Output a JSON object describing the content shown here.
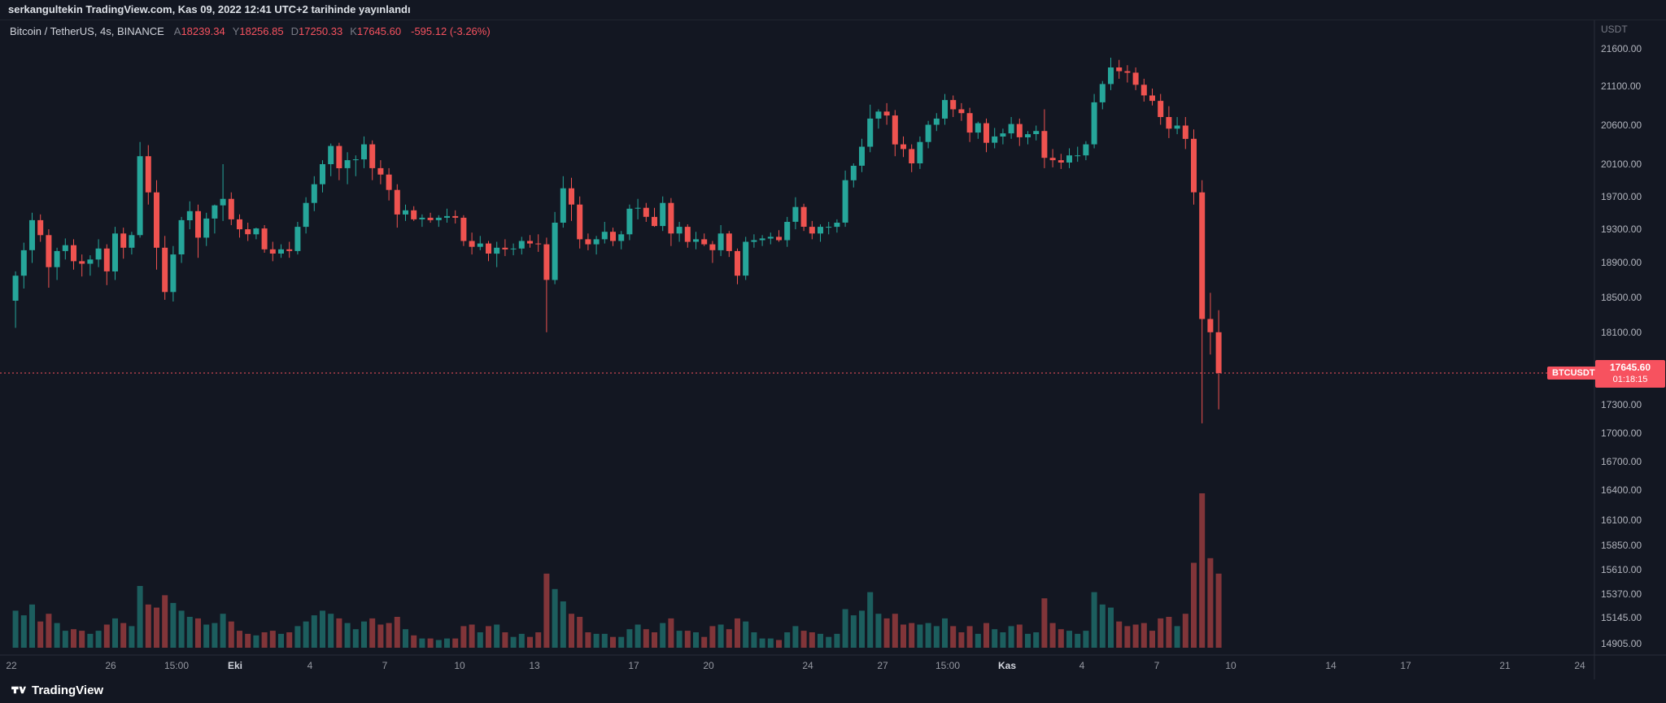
{
  "banner": {
    "text": "serkangultekin TradingView.com, Kas 09, 2022 12:41 UTC+2 tarihinde yayınlandı"
  },
  "legend": {
    "symbol_title": "Bitcoin / TetherUS, 4s, BINANCE",
    "ohlc": [
      {
        "label": "A",
        "value": "18239.34"
      },
      {
        "label": "Y",
        "value": "18256.85"
      },
      {
        "label": "D",
        "value": "17250.33"
      },
      {
        "label": "K",
        "value": "17645.60"
      }
    ],
    "change": "-595.12 (-3.26%)"
  },
  "price_scale": {
    "currency": "USDT",
    "current": {
      "symbol": "BTCUSDT",
      "price": "17645.60",
      "countdown": "01:18:15",
      "value": 17645.6
    },
    "labels": [
      {
        "text": "21600.00",
        "price": 21600
      },
      {
        "text": "21100.00",
        "price": 21100
      },
      {
        "text": "20600.00",
        "price": 20600
      },
      {
        "text": "20100.00",
        "price": 20100
      },
      {
        "text": "19700.00",
        "price": 19700
      },
      {
        "text": "19300.00",
        "price": 19300
      },
      {
        "text": "18900.00",
        "price": 18900
      },
      {
        "text": "18500.00",
        "price": 18500
      },
      {
        "text": "18100.00",
        "price": 18100
      },
      {
        "text": "17300.00",
        "price": 17300
      },
      {
        "text": "17000.00",
        "price": 17000
      },
      {
        "text": "16700.00",
        "price": 16700
      },
      {
        "text": "16400.00",
        "price": 16400
      },
      {
        "text": "16100.00",
        "price": 16100
      },
      {
        "text": "15850.00",
        "price": 15850
      },
      {
        "text": "15610.00",
        "price": 15610
      },
      {
        "text": "15370.00",
        "price": 15370
      },
      {
        "text": "15145.00",
        "price": 15145
      },
      {
        "text": "14905.00",
        "price": 14905
      }
    ]
  },
  "time_scale": {
    "labels": [
      {
        "text": "22",
        "day": 0,
        "major": false
      },
      {
        "text": "26",
        "day": 4,
        "major": false
      },
      {
        "text": "15:00",
        "day": 6.625,
        "major": false
      },
      {
        "text": "Eki",
        "day": 9,
        "major": true
      },
      {
        "text": "4",
        "day": 12,
        "major": false
      },
      {
        "text": "7",
        "day": 15,
        "major": false
      },
      {
        "text": "10",
        "day": 18,
        "major": false
      },
      {
        "text": "13",
        "day": 21,
        "major": false
      },
      {
        "text": "17",
        "day": 25,
        "major": false
      },
      {
        "text": "20",
        "day": 28,
        "major": false
      },
      {
        "text": "24",
        "day": 32,
        "major": false
      },
      {
        "text": "27",
        "day": 35,
        "major": false
      },
      {
        "text": "15:00",
        "day": 37.625,
        "major": false
      },
      {
        "text": "Kas",
        "day": 40,
        "major": true
      },
      {
        "text": "4",
        "day": 43,
        "major": false
      },
      {
        "text": "7",
        "day": 46,
        "major": false
      },
      {
        "text": "10",
        "day": 49,
        "major": false
      },
      {
        "text": "14",
        "day": 53,
        "major": false
      },
      {
        "text": "17",
        "day": 56,
        "major": false
      },
      {
        "text": "21",
        "day": 60,
        "major": false
      },
      {
        "text": "24",
        "day": 63,
        "major": false
      }
    ]
  },
  "footer": {
    "logo_text": "TradingView"
  },
  "colors": {
    "background": "#131722",
    "up": "#26a69a",
    "down": "#ef5350",
    "accent_red": "#f7525f",
    "grid_border": "#2a2e39"
  },
  "chart_data": {
    "type": "candlestick",
    "title": "Bitcoin / TetherUS, 4s, BINANCE",
    "symbol": "BTCUSDT",
    "exchange": "BINANCE",
    "interval": "4s",
    "current_price": 17645.6,
    "change": -595.12,
    "change_pct": -3.26,
    "y_axis": {
      "min": 14905,
      "max": 21600,
      "scale": "log",
      "unit": "USDT"
    },
    "x_axis": {
      "start": "2022-09-22",
      "last_candle": "2022-11-09",
      "visible_end": "2022-11-24"
    },
    "candle_hours": 8,
    "candles_format": "[open, high, low, close, relative_volume_0_100]",
    "candles": [
      [
        18460,
        18800,
        18150,
        18750,
        24
      ],
      [
        18750,
        19140,
        18600,
        19050,
        21
      ],
      [
        19050,
        19500,
        18900,
        19410,
        28
      ],
      [
        19410,
        19480,
        19150,
        19230,
        17
      ],
      [
        19230,
        19300,
        18610,
        18850,
        22
      ],
      [
        18850,
        19080,
        18700,
        19040,
        16
      ],
      [
        19040,
        19190,
        18940,
        19110,
        11
      ],
      [
        19110,
        19180,
        18820,
        18920,
        12
      ],
      [
        18920,
        19000,
        18740,
        18890,
        11
      ],
      [
        18890,
        18990,
        18750,
        18940,
        9
      ],
      [
        18940,
        19180,
        18850,
        19070,
        11
      ],
      [
        19070,
        19120,
        18640,
        18800,
        15
      ],
      [
        18800,
        19330,
        18700,
        19250,
        19
      ],
      [
        19250,
        19320,
        18950,
        19080,
        16
      ],
      [
        19080,
        19270,
        19000,
        19230,
        14
      ],
      [
        19230,
        20380,
        19200,
        20200,
        40
      ],
      [
        20200,
        20340,
        19600,
        19750,
        28
      ],
      [
        19750,
        19900,
        18820,
        19080,
        26
      ],
      [
        19080,
        19220,
        18470,
        18560,
        34
      ],
      [
        18560,
        19100,
        18450,
        19000,
        29
      ],
      [
        19000,
        19450,
        18900,
        19410,
        24
      ],
      [
        19410,
        19640,
        19300,
        19520,
        20
      ],
      [
        19520,
        19600,
        18960,
        19200,
        19
      ],
      [
        19200,
        19500,
        19100,
        19430,
        15
      ],
      [
        19430,
        19600,
        19250,
        19590,
        16
      ],
      [
        19590,
        20100,
        19400,
        19670,
        22
      ],
      [
        19670,
        19750,
        19350,
        19420,
        17
      ],
      [
        19420,
        19480,
        19200,
        19300,
        11
      ],
      [
        19300,
        19380,
        19160,
        19240,
        9
      ],
      [
        19240,
        19320,
        19180,
        19310,
        8
      ],
      [
        19310,
        19350,
        19020,
        19060,
        10
      ],
      [
        19060,
        19150,
        18920,
        19010,
        11
      ],
      [
        19010,
        19120,
        18960,
        19060,
        9
      ],
      [
        19060,
        19150,
        18960,
        19040,
        10
      ],
      [
        19040,
        19390,
        19000,
        19330,
        14
      ],
      [
        19330,
        19690,
        19250,
        19620,
        17
      ],
      [
        19620,
        19950,
        19520,
        19850,
        21
      ],
      [
        19850,
        20150,
        19750,
        20100,
        24
      ],
      [
        20100,
        20360,
        19950,
        20330,
        22
      ],
      [
        20330,
        20370,
        19900,
        20050,
        19
      ],
      [
        20050,
        20250,
        19850,
        20150,
        16
      ],
      [
        20150,
        20210,
        19950,
        20160,
        12
      ],
      [
        20160,
        20450,
        20050,
        20350,
        17
      ],
      [
        20350,
        20400,
        19900,
        20050,
        19
      ],
      [
        20050,
        20150,
        19850,
        19970,
        15
      ],
      [
        19970,
        20050,
        19650,
        19780,
        16
      ],
      [
        19780,
        19850,
        19320,
        19480,
        20
      ],
      [
        19480,
        19600,
        19400,
        19530,
        12
      ],
      [
        19530,
        19580,
        19400,
        19420,
        8
      ],
      [
        19420,
        19480,
        19330,
        19440,
        6
      ],
      [
        19440,
        19500,
        19380,
        19410,
        6
      ],
      [
        19410,
        19470,
        19330,
        19440,
        5
      ],
      [
        19440,
        19550,
        19380,
        19460,
        6
      ],
      [
        19460,
        19530,
        19370,
        19440,
        6
      ],
      [
        19440,
        19470,
        19100,
        19160,
        14
      ],
      [
        19160,
        19260,
        19000,
        19090,
        15
      ],
      [
        19090,
        19220,
        19050,
        19130,
        10
      ],
      [
        19130,
        19160,
        18920,
        19010,
        14
      ],
      [
        19010,
        19150,
        18850,
        19080,
        15
      ],
      [
        19080,
        19180,
        18980,
        19060,
        10
      ],
      [
        19060,
        19130,
        18990,
        19070,
        7
      ],
      [
        19070,
        19210,
        19000,
        19160,
        9
      ],
      [
        19160,
        19230,
        19080,
        19130,
        7
      ],
      [
        19130,
        19240,
        19030,
        19120,
        10
      ],
      [
        19120,
        19200,
        18100,
        18700,
        48
      ],
      [
        18700,
        19510,
        18650,
        19380,
        38
      ],
      [
        19380,
        19950,
        19320,
        19800,
        30
      ],
      [
        19800,
        19930,
        19400,
        19600,
        22
      ],
      [
        19600,
        19700,
        19070,
        19180,
        20
      ],
      [
        19180,
        19250,
        19050,
        19120,
        10
      ],
      [
        19120,
        19220,
        19000,
        19180,
        9
      ],
      [
        19180,
        19390,
        19130,
        19270,
        9
      ],
      [
        19270,
        19320,
        19100,
        19160,
        7
      ],
      [
        19160,
        19280,
        19060,
        19240,
        7
      ],
      [
        19240,
        19600,
        19170,
        19550,
        12
      ],
      [
        19550,
        19670,
        19420,
        19560,
        15
      ],
      [
        19560,
        19620,
        19390,
        19450,
        12
      ],
      [
        19450,
        19560,
        19330,
        19340,
        10
      ],
      [
        19340,
        19700,
        19280,
        19620,
        16
      ],
      [
        19620,
        19680,
        19100,
        19250,
        19
      ],
      [
        19250,
        19390,
        19150,
        19330,
        11
      ],
      [
        19330,
        19360,
        19080,
        19150,
        11
      ],
      [
        19150,
        19270,
        19060,
        19180,
        10
      ],
      [
        19180,
        19250,
        19100,
        19120,
        7
      ],
      [
        19120,
        19160,
        18900,
        19050,
        14
      ],
      [
        19050,
        19350,
        18980,
        19250,
        15
      ],
      [
        19250,
        19280,
        18970,
        19040,
        12
      ],
      [
        19040,
        19070,
        18650,
        18750,
        19
      ],
      [
        18750,
        19210,
        18700,
        19150,
        17
      ],
      [
        19150,
        19240,
        19080,
        19170,
        10
      ],
      [
        19170,
        19230,
        19100,
        19190,
        6
      ],
      [
        19190,
        19260,
        19120,
        19210,
        6
      ],
      [
        19210,
        19290,
        19150,
        19170,
        5
      ],
      [
        19170,
        19450,
        19090,
        19390,
        10
      ],
      [
        19390,
        19690,
        19300,
        19570,
        14
      ],
      [
        19570,
        19610,
        19280,
        19330,
        11
      ],
      [
        19330,
        19400,
        19180,
        19250,
        10
      ],
      [
        19250,
        19360,
        19150,
        19330,
        9
      ],
      [
        19330,
        19390,
        19240,
        19330,
        7
      ],
      [
        19330,
        19420,
        19260,
        19380,
        9
      ],
      [
        19380,
        20020,
        19330,
        19900,
        25
      ],
      [
        19900,
        20110,
        19810,
        20080,
        21
      ],
      [
        20080,
        20420,
        20000,
        20320,
        24
      ],
      [
        20320,
        20860,
        20250,
        20680,
        36
      ],
      [
        20680,
        20800,
        20550,
        20770,
        22
      ],
      [
        20770,
        20880,
        20600,
        20720,
        19
      ],
      [
        20720,
        20790,
        20200,
        20350,
        22
      ],
      [
        20350,
        20450,
        20190,
        20290,
        15
      ],
      [
        20290,
        20350,
        20000,
        20110,
        16
      ],
      [
        20110,
        20450,
        20040,
        20380,
        15
      ],
      [
        20380,
        20650,
        20300,
        20600,
        16
      ],
      [
        20600,
        20750,
        20520,
        20680,
        14
      ],
      [
        20680,
        21000,
        20600,
        20920,
        19
      ],
      [
        20920,
        20980,
        20700,
        20800,
        14
      ],
      [
        20800,
        20880,
        20650,
        20750,
        10
      ],
      [
        20750,
        20820,
        20380,
        20500,
        14
      ],
      [
        20500,
        20640,
        20420,
        20620,
        9
      ],
      [
        20620,
        20680,
        20250,
        20370,
        16
      ],
      [
        20370,
        20560,
        20300,
        20450,
        12
      ],
      [
        20450,
        20550,
        20350,
        20490,
        10
      ],
      [
        20490,
        20700,
        20420,
        20610,
        14
      ],
      [
        20610,
        20680,
        20330,
        20440,
        15
      ],
      [
        20440,
        20520,
        20350,
        20480,
        9
      ],
      [
        20480,
        20590,
        20400,
        20520,
        10
      ],
      [
        20520,
        20800,
        20050,
        20180,
        32
      ],
      [
        20180,
        20290,
        20060,
        20150,
        16
      ],
      [
        20150,
        20230,
        20040,
        20120,
        12
      ],
      [
        20120,
        20300,
        20050,
        20210,
        11
      ],
      [
        20210,
        20320,
        20130,
        20210,
        9
      ],
      [
        20210,
        20390,
        20150,
        20350,
        11
      ],
      [
        20350,
        21000,
        20300,
        20890,
        36
      ],
      [
        20890,
        21170,
        20800,
        21130,
        28
      ],
      [
        21130,
        21480,
        21050,
        21350,
        26
      ],
      [
        21350,
        21450,
        21200,
        21300,
        17
      ],
      [
        21300,
        21380,
        21150,
        21280,
        14
      ],
      [
        21280,
        21350,
        21050,
        21120,
        15
      ],
      [
        21120,
        21200,
        20900,
        20980,
        16
      ],
      [
        20980,
        21070,
        20850,
        20910,
        11
      ],
      [
        20910,
        21000,
        20600,
        20700,
        19
      ],
      [
        20700,
        20840,
        20430,
        20550,
        20
      ],
      [
        20550,
        20700,
        20480,
        20590,
        14
      ],
      [
        20590,
        20700,
        20290,
        20420,
        22
      ],
      [
        20420,
        20540,
        19600,
        19750,
        55
      ],
      [
        19750,
        19900,
        17100,
        18250,
        100
      ],
      [
        18250,
        18550,
        17850,
        18100,
        58
      ],
      [
        18100,
        18350,
        17250,
        17645.6,
        48
      ]
    ]
  }
}
